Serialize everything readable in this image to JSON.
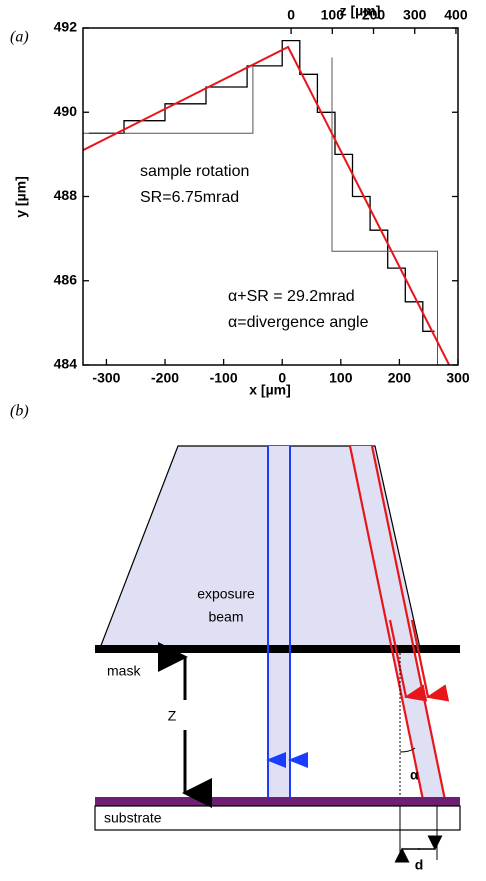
{
  "chart_data": {
    "type": "line",
    "panel_label": "(a)",
    "xlabel": "x [µm]",
    "ylabel": "y [µm]",
    "x2label": "z [µm]",
    "xlim": [
      -340,
      300
    ],
    "xticks": [
      -300,
      -200,
      -100,
      0,
      100,
      200,
      300
    ],
    "x2lim": [
      -505,
      405
    ],
    "x2ticks": [
      0,
      100,
      200,
      300,
      400
    ],
    "ylim": [
      484,
      492
    ],
    "yticks": [
      484,
      486,
      488,
      490,
      492
    ],
    "annotations": [
      "sample rotation",
      "SR=6.75mrad",
      "α+SR = 29.2mrad",
      "α=divergence angle"
    ],
    "series": [
      {
        "color": "#000000",
        "x": [
          -330,
          -270,
          -270,
          -200,
          -200,
          -130,
          -130,
          -60,
          -60,
          0,
          0,
          30,
          30,
          60,
          60,
          90,
          90,
          120,
          120,
          150,
          150,
          180,
          180,
          210,
          210,
          240,
          240,
          260
        ],
        "values": [
          489.5,
          489.5,
          489.8,
          489.8,
          490.2,
          490.2,
          490.6,
          490.6,
          491.1,
          491.1,
          491.7,
          491.7,
          490.9,
          490.9,
          490.0,
          490.0,
          489.0,
          489.0,
          488.0,
          488.0,
          487.2,
          487.2,
          486.3,
          486.3,
          485.5,
          485.5,
          484.8,
          484.8
        ]
      },
      {
        "color": "#555555",
        "x": [
          -340,
          -50,
          -50,
          null,
          85,
          85,
          265,
          265
        ],
        "values": [
          489.5,
          489.5,
          491.1,
          null,
          491.3,
          486.7,
          486.7,
          484
        ]
      },
      {
        "color": "#e8161b",
        "x": [
          -340,
          10,
          285
        ],
        "values": [
          489.1,
          491.55,
          484
        ]
      }
    ]
  },
  "diagram": {
    "panel_label": "(b)",
    "beam_label": [
      "exposure",
      "beam"
    ],
    "mask_label": "mask",
    "gap_label": "Z",
    "angle_label": "α",
    "substrate_label": "substrate",
    "offset_label": "d"
  }
}
